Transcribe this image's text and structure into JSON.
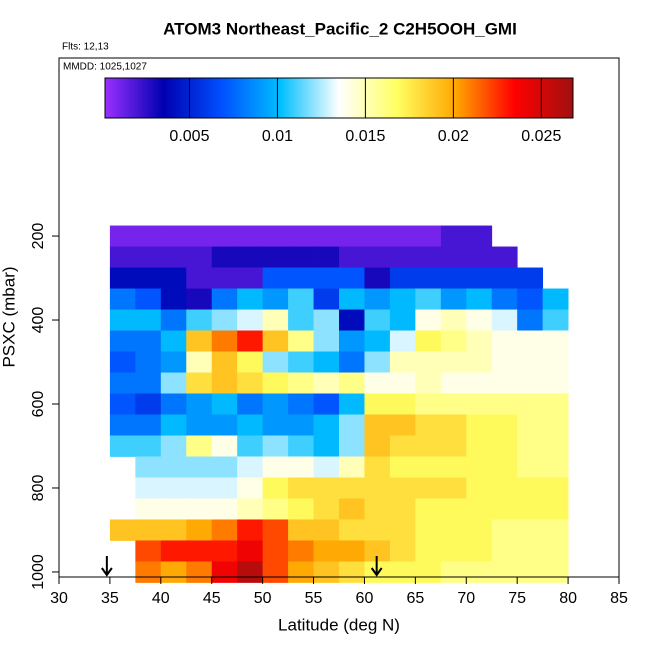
{
  "chart_data": {
    "type": "heatmap",
    "title": "ATOM3 Northeast_Pacific_2 C2H5OOH_GMI",
    "subtitle_lines": [
      "Flts: 12,13",
      "MMDD: 1025,1027"
    ],
    "x_label": "Latitude (deg N)",
    "y_label": "PSXC (mbar)",
    "xlim": [
      30,
      85
    ],
    "xticks": [
      30,
      35,
      40,
      45,
      50,
      55,
      60,
      65,
      70,
      75,
      80,
      85
    ],
    "ylim": [
      1012,
      -224
    ],
    "yticks": [
      200,
      400,
      600,
      800,
      1000
    ],
    "x_edges": [
      35,
      37.5,
      40,
      42.5,
      45,
      47.5,
      50,
      52.5,
      55,
      57.5,
      60,
      62.5,
      65,
      67.5,
      70,
      72.5,
      75,
      77.5,
      80
    ],
    "y_edges": [
      175,
      225,
      275,
      325,
      375,
      425,
      475,
      525,
      575,
      625,
      675,
      725,
      775,
      825,
      875,
      925,
      975,
      1025
    ],
    "values": [
      [
        0.001,
        0.001,
        0.001,
        0.001,
        0.001,
        0.001,
        0.001,
        0.001,
        0.001,
        0.001,
        0.001,
        0.001,
        0.001,
        0.002,
        0.002,
        null,
        null,
        null
      ],
      [
        0.002,
        0.002,
        0.002,
        0.002,
        0.003,
        0.003,
        0.003,
        0.003,
        0.003,
        0.002,
        0.002,
        0.002,
        0.002,
        0.002,
        0.002,
        0.002,
        null,
        null
      ],
      [
        0.004,
        0.004,
        0.004,
        0.002,
        0.002,
        0.002,
        0.007,
        0.007,
        0.007,
        0.007,
        0.003,
        0.006,
        0.006,
        0.006,
        0.006,
        0.006,
        0.006,
        null
      ],
      [
        0.008,
        0.007,
        0.004,
        0.003,
        0.008,
        0.01,
        0.009,
        0.011,
        0.006,
        0.01,
        0.009,
        0.01,
        0.011,
        0.009,
        0.01,
        0.008,
        0.007,
        0.01
      ],
      [
        0.01,
        0.01,
        0.008,
        0.011,
        0.012,
        0.013,
        0.015,
        0.011,
        0.012,
        0.004,
        0.011,
        0.01,
        0.014,
        0.015,
        0.014,
        0.013,
        0.008,
        0.011
      ],
      [
        0.008,
        0.008,
        0.01,
        0.019,
        0.021,
        0.023,
        0.019,
        0.016,
        0.012,
        0.009,
        0.01,
        0.013,
        0.017,
        0.016,
        0.015,
        0.014,
        0.014,
        0.014
      ],
      [
        0.007,
        0.008,
        0.009,
        0.015,
        0.019,
        0.017,
        0.012,
        0.011,
        0.01,
        0.008,
        0.012,
        0.015,
        0.015,
        0.015,
        0.015,
        0.014,
        0.014,
        0.014
      ],
      [
        0.008,
        0.008,
        0.012,
        0.018,
        0.019,
        0.018,
        0.017,
        0.016,
        0.015,
        0.016,
        0.014,
        0.014,
        0.015,
        0.014,
        0.014,
        0.014,
        0.014,
        0.014
      ],
      [
        0.007,
        0.006,
        0.008,
        0.009,
        0.01,
        0.008,
        0.009,
        0.008,
        0.007,
        0.01,
        0.017,
        0.017,
        0.016,
        0.016,
        0.016,
        0.016,
        0.016,
        0.016
      ],
      [
        0.008,
        0.008,
        0.01,
        0.009,
        0.009,
        0.01,
        0.009,
        0.009,
        0.01,
        0.012,
        0.019,
        0.019,
        0.018,
        0.018,
        0.017,
        0.017,
        0.016,
        0.016
      ],
      [
        0.011,
        0.011,
        0.012,
        0.016,
        0.014,
        0.011,
        0.012,
        0.011,
        0.01,
        0.012,
        0.019,
        0.018,
        0.018,
        0.018,
        0.017,
        0.017,
        0.016,
        0.016
      ],
      [
        null,
        0.012,
        0.012,
        0.012,
        0.012,
        0.013,
        0.014,
        0.014,
        0.013,
        0.015,
        0.018,
        0.017,
        0.017,
        0.017,
        0.017,
        0.017,
        0.016,
        0.016
      ],
      [
        null,
        0.013,
        0.013,
        0.013,
        0.013,
        0.014,
        0.017,
        0.018,
        0.018,
        0.018,
        0.018,
        0.018,
        0.018,
        0.018,
        0.017,
        0.017,
        0.017,
        0.017
      ],
      [
        null,
        0.014,
        0.014,
        0.014,
        0.014,
        0.015,
        0.016,
        0.017,
        0.018,
        0.019,
        0.018,
        0.018,
        0.017,
        0.017,
        0.017,
        0.017,
        0.017,
        0.017
      ],
      [
        0.019,
        0.019,
        0.019,
        0.02,
        0.021,
        0.023,
        0.022,
        0.019,
        0.019,
        0.018,
        0.018,
        0.018,
        0.017,
        0.017,
        0.017,
        0.016,
        0.016,
        0.016
      ],
      [
        null,
        0.022,
        0.023,
        0.023,
        0.023,
        0.024,
        0.022,
        0.021,
        0.02,
        0.02,
        0.019,
        0.018,
        0.017,
        0.017,
        0.017,
        0.016,
        0.016,
        0.016
      ],
      [
        null,
        0.021,
        0.02,
        0.021,
        0.024,
        0.026,
        0.022,
        0.02,
        0.019,
        0.018,
        0.017,
        0.017,
        0.017,
        0.016,
        0.016,
        0.016,
        0.016,
        0.016
      ]
    ],
    "clim": [
      0.0002,
      0.0268
    ],
    "cticks": [
      0.005,
      0.01,
      0.015,
      0.02,
      0.025
    ],
    "colormap": [
      "#9b30ff",
      "#0000b0",
      "#0050ff",
      "#00bfff",
      "#ffffff",
      "#ffff60",
      "#ffa500",
      "#ff0000",
      "#a01010"
    ],
    "arrows_x": [
      34.7,
      61.2
    ]
  }
}
